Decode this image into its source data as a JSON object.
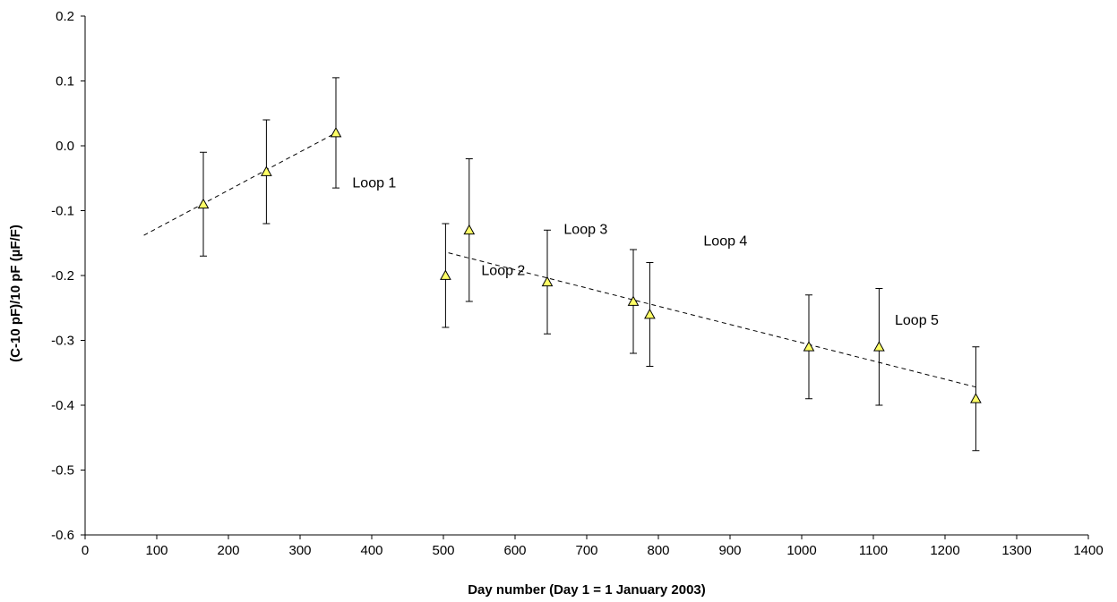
{
  "chart_data": {
    "type": "scatter",
    "xlabel": "Day number (Day 1 = 1 January 2003)",
    "ylabel": "(C-10 pF)/10 pF (µF/F)",
    "xlim": [
      0,
      1400
    ],
    "ylim": [
      -0.6,
      0.2
    ],
    "xticks": [
      "0",
      "100",
      "200",
      "300",
      "400",
      "500",
      "600",
      "700",
      "800",
      "900",
      "1000",
      "1100",
      "1200",
      "1300",
      "1400"
    ],
    "yticks": [
      "0.2",
      "0.1",
      "0.0",
      "-0.1",
      "-0.2",
      "-0.3",
      "-0.4",
      "-0.5",
      "-0.6"
    ],
    "grid": false,
    "marker": {
      "shape": "triangle",
      "fill": "#ffff66",
      "stroke": "#000000"
    },
    "points": [
      {
        "x": 165,
        "y": -0.09,
        "err": 0.08
      },
      {
        "x": 253,
        "y": -0.04,
        "err": 0.08
      },
      {
        "x": 350,
        "y": 0.02,
        "err": 0.085
      },
      {
        "x": 503,
        "y": -0.2,
        "err": 0.08
      },
      {
        "x": 536,
        "y": -0.13,
        "err": 0.11
      },
      {
        "x": 645,
        "y": -0.21,
        "err": 0.08
      },
      {
        "x": 765,
        "y": -0.24,
        "err": 0.08
      },
      {
        "x": 788,
        "y": -0.26,
        "err": 0.08
      },
      {
        "x": 1010,
        "y": -0.31,
        "err": 0.08
      },
      {
        "x": 1108,
        "y": -0.31,
        "err": 0.09
      },
      {
        "x": 1243,
        "y": -0.39,
        "err": 0.08
      }
    ],
    "trend_lines": [
      {
        "style": "dashed",
        "x": [
          82,
          350
        ],
        "y": [
          -0.138,
          0.02
        ]
      },
      {
        "style": "dashed",
        "x": [
          507,
          1243
        ],
        "y": [
          -0.165,
          -0.372
        ]
      }
    ],
    "annotations": [
      {
        "text": "Loop 1",
        "x": 373,
        "y": -0.064
      },
      {
        "text": "Loop 2",
        "x": 553,
        "y": -0.199
      },
      {
        "text": "Loop 3",
        "x": 668,
        "y": -0.136
      },
      {
        "text": "Loop 4",
        "x": 863,
        "y": -0.154
      },
      {
        "text": "Loop 5",
        "x": 1130,
        "y": -0.276
      }
    ]
  }
}
